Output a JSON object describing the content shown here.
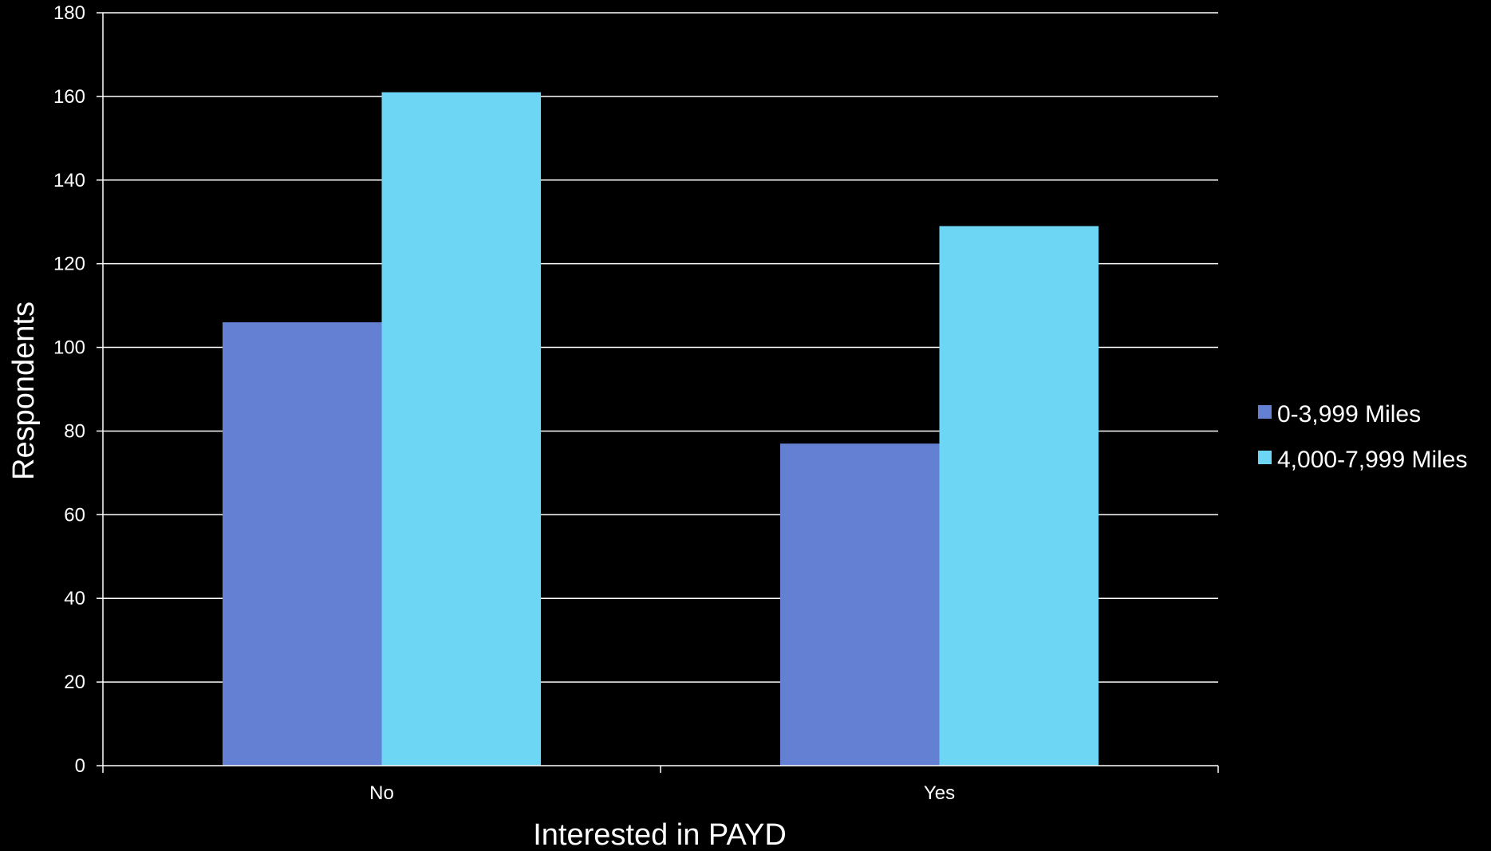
{
  "chart_data": {
    "type": "bar",
    "title": "",
    "xlabel": "Interested in PAYD",
    "ylabel": "Respondents",
    "categories": [
      "No",
      "Yes"
    ],
    "series": [
      {
        "name": "0-3,999 Miles",
        "values": [
          106,
          77
        ],
        "color": "#6380d3"
      },
      {
        "name": "4,000-7,999 Miles",
        "values": [
          161,
          129
        ],
        "color": "#6ed6f5"
      }
    ],
    "ylim": [
      0,
      180
    ],
    "ytick_step": 20,
    "grid": true,
    "legend_position": "right",
    "background": "#000000",
    "text_color": "#ffffff"
  }
}
